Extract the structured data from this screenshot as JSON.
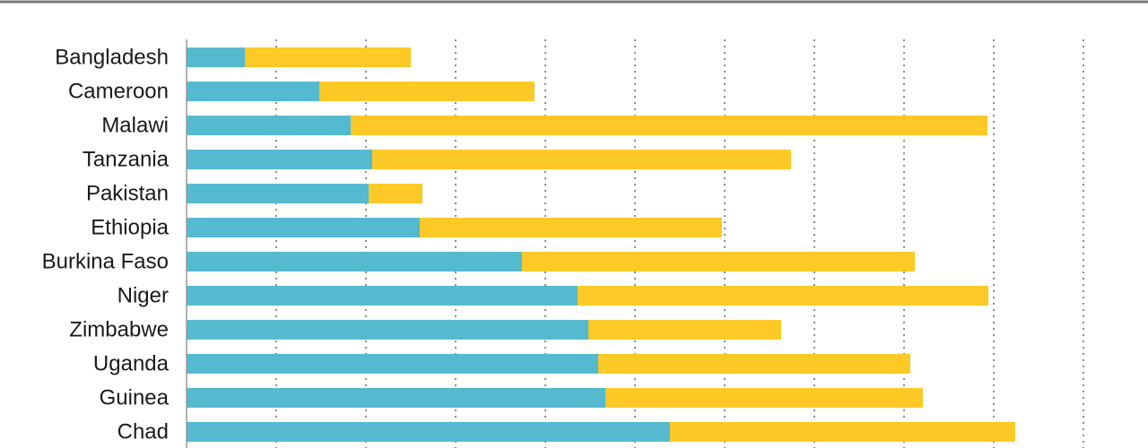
{
  "chart_data": {
    "type": "bar",
    "orientation": "horizontal",
    "stacked": true,
    "title": "",
    "xlabel": "",
    "ylabel": "",
    "categories": [
      "Bangladesh",
      "Cameroon",
      "Malawi",
      "Tanzania",
      "Pakistan",
      "Ethiopia",
      "Burkina Faso",
      "Niger",
      "Zimbabwe",
      "Uganda",
      "Guinea",
      "Chad"
    ],
    "series": [
      {
        "color": "#55bad0",
        "values": [
          6.5,
          14.8,
          18.3,
          20.7,
          20.3,
          26.0,
          37.4,
          43.6,
          44.8,
          45.9,
          46.7,
          53.9
        ]
      },
      {
        "color": "#fdc926",
        "values": [
          18.5,
          24.0,
          71.0,
          46.7,
          6.0,
          33.7,
          43.8,
          45.8,
          21.5,
          34.8,
          35.4,
          38.5
        ]
      }
    ],
    "xlim": [
      0,
      100
    ],
    "x_gridlines": [
      10,
      20,
      30,
      40,
      50,
      60,
      70,
      80,
      90,
      100
    ],
    "grid": "vertical dotted",
    "legend": "none"
  }
}
